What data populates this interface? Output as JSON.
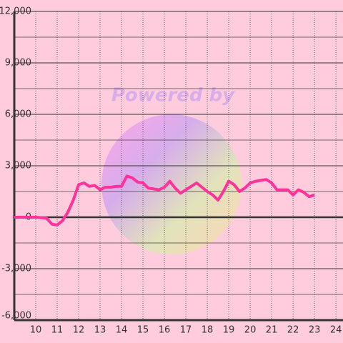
{
  "chart_data": {
    "type": "line",
    "watermark": "Powered by",
    "x": [
      9,
      10,
      10.5,
      10.75,
      11,
      11.25,
      11.5,
      11.75,
      12,
      12.25,
      12.5,
      12.75,
      13,
      13.25,
      13.5,
      13.75,
      14,
      14.25,
      14.5,
      14.75,
      15,
      15.25,
      15.5,
      15.75,
      16,
      16.25,
      16.5,
      16.75,
      17,
      17.25,
      17.5,
      17.75,
      18,
      18.25,
      18.5,
      18.75,
      19,
      19.25,
      19.5,
      19.75,
      20,
      20.25,
      20.5,
      20.75,
      21,
      21.25,
      21.5,
      21.75,
      22,
      22.25,
      22.5,
      22.75,
      23
    ],
    "series": [
      {
        "color": "#ff3399",
        "values": [
          0,
          0,
          -50,
          -400,
          -450,
          -200,
          300,
          1000,
          1900,
          2000,
          1800,
          1850,
          1600,
          1750,
          1750,
          1800,
          1800,
          2400,
          2300,
          2050,
          2000,
          1700,
          1650,
          1600,
          1750,
          2100,
          1700,
          1400,
          1600,
          1800,
          2000,
          1750,
          1500,
          1300,
          1000,
          1500,
          2100,
          1900,
          1500,
          1700,
          2000,
          2100,
          2150,
          2200,
          2000,
          1600,
          1600,
          1600,
          1300,
          1600,
          1450,
          1200,
          1300
        ]
      }
    ],
    "xlim": [
      9,
      24.33
    ],
    "xticks": [
      10,
      11,
      12,
      13,
      14,
      15,
      16,
      17,
      18,
      19,
      20,
      21,
      22,
      23,
      24
    ],
    "ylim": [
      -6000,
      12000
    ],
    "yticks": [
      {
        "value": 12000,
        "label": "12,000"
      },
      {
        "value": 9000,
        "label": "9,000"
      },
      {
        "value": 6000,
        "label": "6,000"
      },
      {
        "value": 3000,
        "label": "3,000"
      },
      0,
      {
        "value": -3000,
        "label": "-3,000"
      },
      {
        "value": -6000,
        "label": "-6,000"
      }
    ],
    "y_minor_ticks": [
      10500,
      7500,
      4500,
      1500,
      -1500,
      -4500
    ],
    "grid": true
  }
}
